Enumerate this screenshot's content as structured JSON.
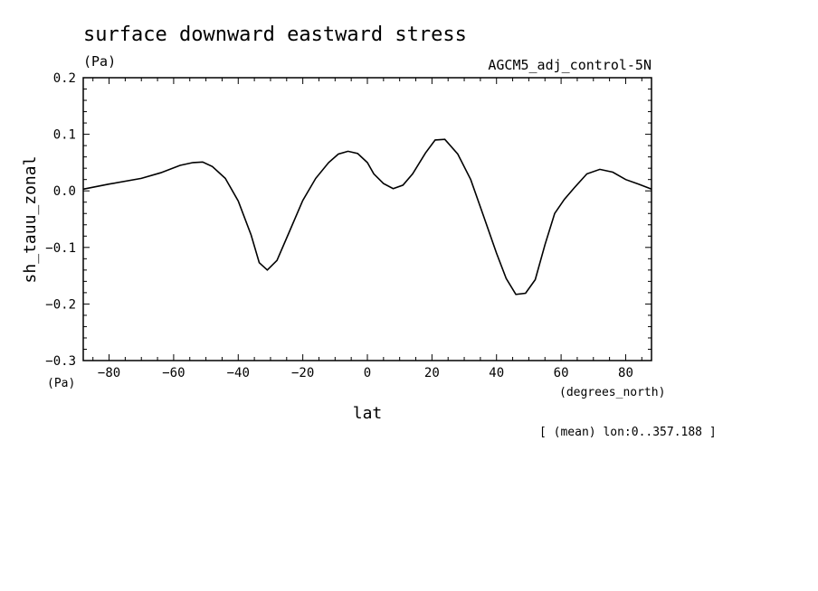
{
  "chart_data": {
    "type": "line",
    "title": "surface downward eastward stress",
    "units": "(Pa)",
    "dataset": "AGCM5_adj_control-5N",
    "ylabel": "sh_tauu_zonal",
    "ylabel_units": "(Pa)",
    "xlabel": "lat",
    "xlabel_units": "(degrees_north)",
    "note": "[ (mean) lon:0..357.188 ]",
    "xlim": [
      -88,
      88
    ],
    "ylim": [
      -0.3,
      0.2
    ],
    "xticks": [
      -80,
      -60,
      -40,
      -20,
      0,
      20,
      40,
      60,
      80
    ],
    "yticks": [
      -0.3,
      -0.2,
      -0.1,
      0.0,
      0.1,
      0.2
    ],
    "ytick_labels": [
      "−0.3",
      "−0.2",
      "−0.1",
      "0.0",
      "0.1",
      "0.2"
    ],
    "xtick_labels": [
      "−80",
      "−60",
      "−40",
      "−20",
      "0",
      "20",
      "40",
      "60",
      "80"
    ],
    "grid": false,
    "series": [
      {
        "x": [
          -88,
          -80,
          -70,
          -64,
          -58,
          -54,
          -51,
          -48,
          -44,
          -40,
          -36,
          -33.5,
          -31,
          -28,
          -24,
          -20,
          -16,
          -12,
          -9,
          -6,
          -3,
          0,
          2,
          5,
          8,
          11,
          14,
          18,
          21,
          24,
          28,
          32,
          36,
          40,
          43,
          46,
          49,
          52,
          55,
          58,
          61,
          64,
          68,
          72,
          76,
          80,
          84,
          88
        ],
        "y": [
          0.003,
          0.012,
          0.022,
          0.032,
          0.045,
          0.05,
          0.051,
          0.043,
          0.022,
          -0.018,
          -0.078,
          -0.127,
          -0.14,
          -0.123,
          -0.07,
          -0.017,
          0.022,
          0.05,
          0.065,
          0.07,
          0.066,
          0.05,
          0.03,
          0.013,
          0.004,
          0.01,
          0.03,
          0.067,
          0.09,
          0.091,
          0.065,
          0.02,
          -0.045,
          -0.11,
          -0.155,
          -0.183,
          -0.181,
          -0.157,
          -0.095,
          -0.04,
          -0.015,
          0.005,
          0.03,
          0.038,
          0.033,
          0.02,
          0.012,
          0.003
        ]
      }
    ]
  }
}
